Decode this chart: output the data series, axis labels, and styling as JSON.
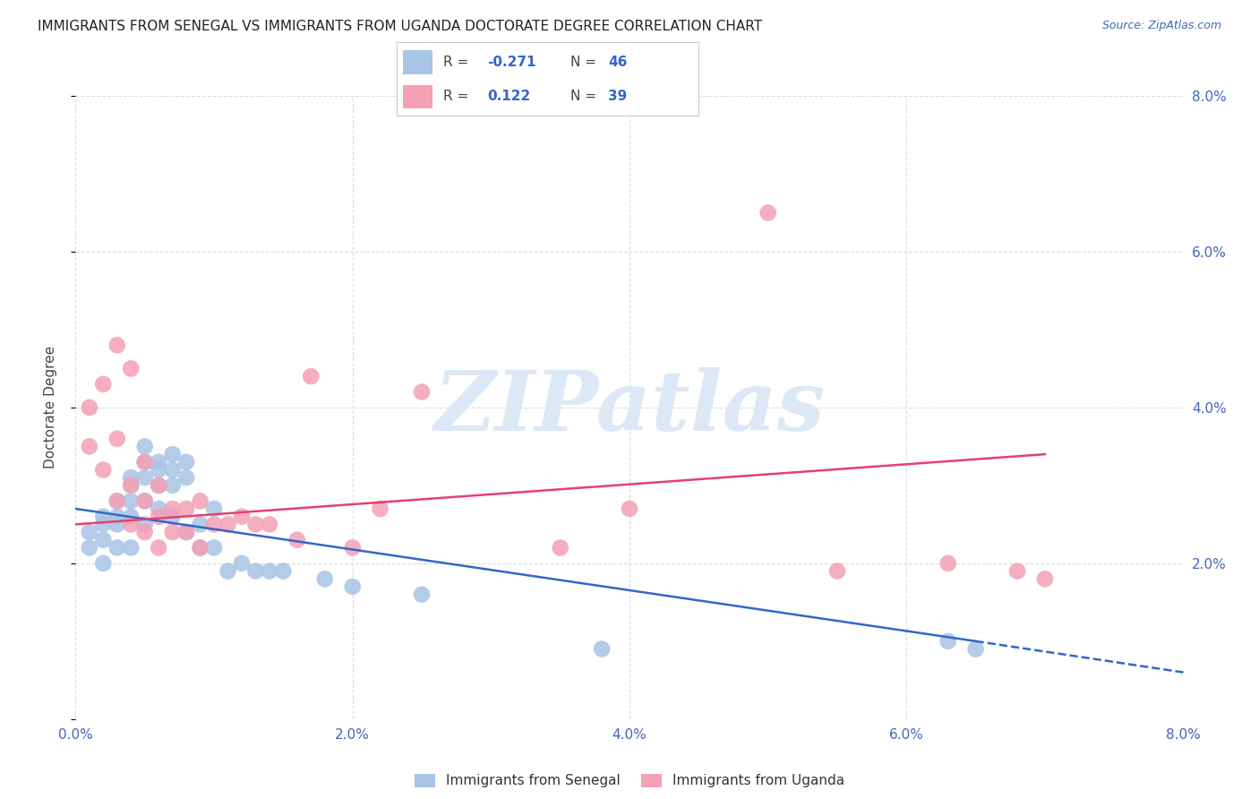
{
  "title": "IMMIGRANTS FROM SENEGAL VS IMMIGRANTS FROM UGANDA DOCTORATE DEGREE CORRELATION CHART",
  "source": "Source: ZipAtlas.com",
  "ylabel": "Doctorate Degree",
  "xlim": [
    0.0,
    0.08
  ],
  "ylim": [
    0.0,
    0.08
  ],
  "xticks": [
    0.0,
    0.02,
    0.04,
    0.06,
    0.08
  ],
  "yticks": [
    0.0,
    0.02,
    0.04,
    0.06,
    0.08
  ],
  "xticklabels": [
    "0.0%",
    "2.0%",
    "4.0%",
    "6.0%",
    "8.0%"
  ],
  "yticklabels_right": [
    "",
    "2.0%",
    "4.0%",
    "6.0%",
    "8.0%"
  ],
  "senegal_R": -0.271,
  "senegal_N": 46,
  "uganda_R": 0.122,
  "uganda_N": 39,
  "senegal_color": "#a8c4e6",
  "uganda_color": "#f4a0b5",
  "senegal_line_color": "#3366cc",
  "uganda_line_color": "#e84070",
  "watermark": "ZIPatlas",
  "watermark_color": "#dce8f5",
  "senegal_x": [
    0.001,
    0.001,
    0.002,
    0.002,
    0.002,
    0.002,
    0.003,
    0.003,
    0.003,
    0.003,
    0.004,
    0.004,
    0.004,
    0.004,
    0.004,
    0.005,
    0.005,
    0.005,
    0.005,
    0.005,
    0.006,
    0.006,
    0.006,
    0.006,
    0.007,
    0.007,
    0.007,
    0.007,
    0.008,
    0.008,
    0.008,
    0.009,
    0.009,
    0.01,
    0.01,
    0.011,
    0.012,
    0.013,
    0.014,
    0.015,
    0.018,
    0.02,
    0.025,
    0.038,
    0.063,
    0.065
  ],
  "senegal_y": [
    0.024,
    0.022,
    0.026,
    0.025,
    0.023,
    0.02,
    0.028,
    0.026,
    0.025,
    0.022,
    0.031,
    0.03,
    0.028,
    0.026,
    0.022,
    0.035,
    0.033,
    0.031,
    0.028,
    0.025,
    0.033,
    0.032,
    0.03,
    0.027,
    0.034,
    0.032,
    0.03,
    0.026,
    0.033,
    0.031,
    0.024,
    0.025,
    0.022,
    0.027,
    0.022,
    0.019,
    0.02,
    0.019,
    0.019,
    0.019,
    0.018,
    0.017,
    0.016,
    0.009,
    0.01,
    0.009
  ],
  "uganda_x": [
    0.001,
    0.001,
    0.002,
    0.002,
    0.003,
    0.003,
    0.003,
    0.004,
    0.004,
    0.004,
    0.005,
    0.005,
    0.005,
    0.006,
    0.006,
    0.006,
    0.007,
    0.007,
    0.008,
    0.008,
    0.009,
    0.009,
    0.01,
    0.011,
    0.012,
    0.013,
    0.014,
    0.016,
    0.017,
    0.02,
    0.022,
    0.025,
    0.035,
    0.04,
    0.05,
    0.055,
    0.063,
    0.068,
    0.07
  ],
  "uganda_y": [
    0.04,
    0.035,
    0.043,
    0.032,
    0.048,
    0.036,
    0.028,
    0.045,
    0.03,
    0.025,
    0.033,
    0.028,
    0.024,
    0.03,
    0.026,
    0.022,
    0.027,
    0.024,
    0.027,
    0.024,
    0.028,
    0.022,
    0.025,
    0.025,
    0.026,
    0.025,
    0.025,
    0.023,
    0.044,
    0.022,
    0.027,
    0.042,
    0.022,
    0.027,
    0.065,
    0.019,
    0.02,
    0.019,
    0.018
  ],
  "sen_trend_x0": 0.0,
  "sen_trend_y0": 0.027,
  "sen_trend_x1": 0.065,
  "sen_trend_y1": 0.01,
  "sen_trend_dash_x0": 0.065,
  "sen_trend_dash_y0": 0.01,
  "sen_trend_dash_x1": 0.08,
  "sen_trend_dash_y1": 0.006,
  "ug_trend_x0": 0.0,
  "ug_trend_y0": 0.025,
  "ug_trend_x1": 0.07,
  "ug_trend_y1": 0.034,
  "grid_color": "#d4dde8",
  "background_color": "#ffffff",
  "title_fontsize": 11,
  "axis_label_fontsize": 11,
  "tick_fontsize": 11,
  "tick_color": "#4466bb"
}
